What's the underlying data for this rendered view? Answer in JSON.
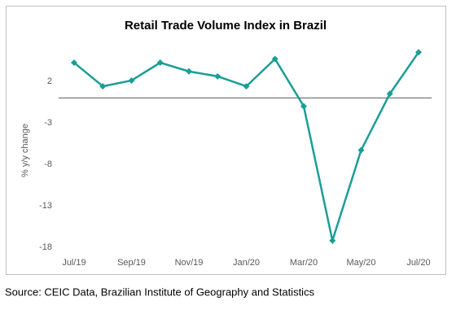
{
  "chart_data": {
    "type": "line",
    "title": "Retail Trade Volume Index in Brazil",
    "y_label": "% y/y change",
    "categories": [
      "Jul/19",
      null,
      "Sep/19",
      null,
      "Nov/19",
      null,
      "Jan/20",
      null,
      "Mar/20",
      null,
      "May/20",
      null,
      "Jul/20"
    ],
    "series": [
      {
        "name": "Retail Trade Volume",
        "color": "#1a9e96",
        "values": [
          4.25,
          1.4,
          2.1,
          4.25,
          3.2,
          2.6,
          1.4,
          4.7,
          -1.0,
          -17.2,
          -6.3,
          0.5,
          5.5
        ]
      }
    ],
    "ylim": [
      -18.6,
      7
    ],
    "yticks": [
      2,
      -3,
      -8,
      -13,
      -18
    ],
    "grid": false
  },
  "source": "Source: CEIC Data, Brazilian Institute of Geography and Statistics"
}
